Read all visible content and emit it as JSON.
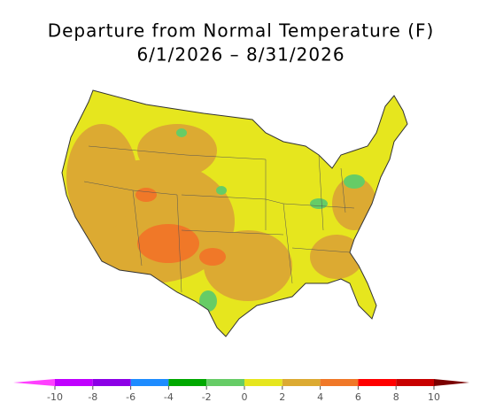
{
  "title": "Departure from Normal Temperature (F)",
  "subtitle": "6/1/2026 – 8/31/2026",
  "colorbar": {
    "ticks": [
      -10,
      -8,
      -6,
      -4,
      -2,
      0,
      2,
      4,
      6,
      8,
      10
    ],
    "colors": [
      "#ff40ff",
      "#c000ff",
      "#8c00e6",
      "#1e8cff",
      "#00a800",
      "#66cc66",
      "#e6e61e",
      "#dcaa32",
      "#f07828",
      "#ff0000",
      "#c80000",
      "#7a0000"
    ]
  }
}
